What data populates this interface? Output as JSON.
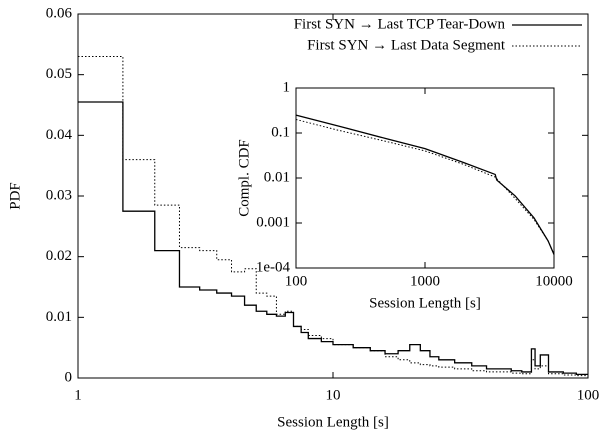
{
  "chart_data": [
    {
      "type": "step",
      "x_label": "Session Length [s]",
      "y_label": "PDF",
      "xscale": "log",
      "legend": "upper right",
      "x": [
        1,
        1.5,
        2,
        2.5,
        3,
        3.5,
        4,
        4.5,
        5,
        5.5,
        6,
        6.5,
        7,
        7.5,
        8,
        9,
        10,
        12,
        14,
        16,
        18,
        20,
        22,
        24,
        26,
        30,
        35,
        40,
        50,
        55,
        60,
        62,
        65,
        70,
        80,
        90,
        100
      ],
      "series": [
        {
          "name": "First SYN → Last TCP Tear-Down",
          "color": "#000000",
          "dash": "solid",
          "values": [
            0.0455,
            0.0275,
            0.021,
            0.015,
            0.0145,
            0.014,
            0.0135,
            0.012,
            0.011,
            0.0105,
            0.0102,
            0.0108,
            0.0085,
            0.0075,
            0.0065,
            0.006,
            0.0055,
            0.005,
            0.0045,
            0.004,
            0.0045,
            0.0055,
            0.0045,
            0.0035,
            0.003,
            0.0025,
            0.002,
            0.0015,
            0.0012,
            0.001,
            0.0048,
            0.002,
            0.0038,
            0.001,
            0.0008,
            0.0006,
            0.0006
          ]
        },
        {
          "name": "First SYN → Last Data Segment",
          "color": "#000000",
          "dash": "dotted",
          "values": [
            0.053,
            0.036,
            0.0285,
            0.0215,
            0.021,
            0.0195,
            0.0175,
            0.018,
            0.014,
            0.0135,
            0.0105,
            0.011,
            0.0085,
            0.008,
            0.007,
            0.0065,
            0.0055,
            0.005,
            0.0045,
            0.0035,
            0.003,
            0.0025,
            0.0022,
            0.002,
            0.0018,
            0.0015,
            0.0012,
            0.001,
            0.0008,
            0.0007,
            0.003,
            0.0015,
            0.002,
            0.0007,
            0.0005,
            0.0004,
            0.0004
          ]
        }
      ],
      "xlim": [
        1,
        100
      ],
      "xticks": [
        1,
        10,
        100
      ],
      "ylim": [
        0,
        0.06
      ],
      "yticks": [
        0,
        0.01,
        0.02,
        0.03,
        0.04,
        0.05,
        0.06
      ]
    },
    {
      "type": "line",
      "x_label": "Session Length [s]",
      "y_label": "Compl. CDF",
      "xscale": "log",
      "yscale": "log",
      "series": [
        {
          "color": "#000000",
          "dash": "solid",
          "x": [
            100,
            200,
            500,
            1000,
            2000,
            3500,
            3600,
            5000,
            7000,
            9000,
            10000
          ],
          "values": [
            0.25,
            0.15,
            0.075,
            0.045,
            0.022,
            0.012,
            0.009,
            0.004,
            0.0013,
            0.0004,
            0.0002
          ]
        },
        {
          "color": "#000000",
          "dash": "dotted",
          "x": [
            100,
            200,
            500,
            1000,
            2000,
            3500,
            5000,
            7000,
            9000,
            10000
          ],
          "values": [
            0.2,
            0.12,
            0.065,
            0.04,
            0.02,
            0.0105,
            0.0035,
            0.0012,
            0.0004,
            0.0002
          ]
        }
      ],
      "xlim": [
        100,
        10000
      ],
      "xticks": [
        100,
        1000,
        10000
      ],
      "ylim": [
        0.0001,
        1
      ],
      "yticks": [
        1,
        0.1,
        0.01,
        0.001,
        {
          "value": 0.0001,
          "label": "1e-04"
        }
      ]
    }
  ]
}
